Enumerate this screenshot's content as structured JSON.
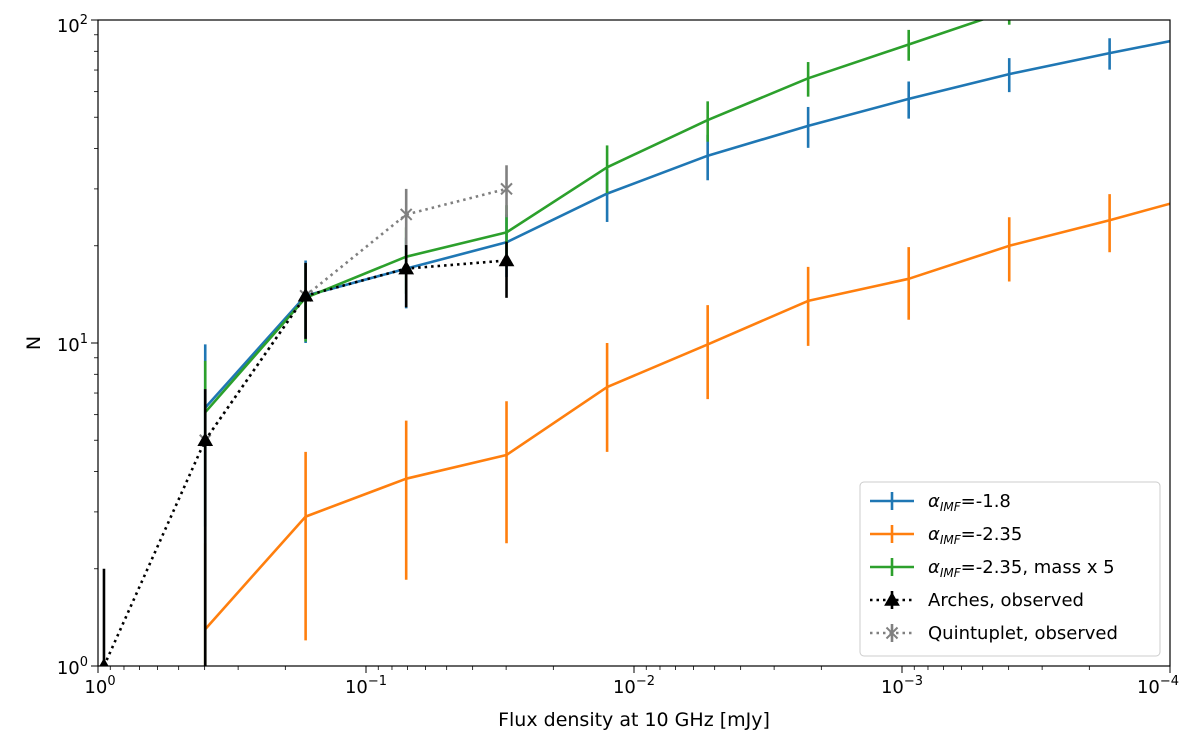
{
  "chart_data": {
    "type": "line",
    "xlabel": "Flux density at 10 GHz [mJy]",
    "ylabel": "N",
    "x_scale": "log",
    "y_scale": "log",
    "x_inverted": true,
    "xlim": [
      1,
      0.0001
    ],
    "ylim": [
      1,
      100
    ],
    "x_ticks": [
      {
        "value": 1,
        "base": "10",
        "exp": "0"
      },
      {
        "value": 0.1,
        "base": "10",
        "exp": "−1"
      },
      {
        "value": 0.01,
        "base": "10",
        "exp": "−2"
      },
      {
        "value": 0.001,
        "base": "10",
        "exp": "−3"
      },
      {
        "value": 0.0001,
        "base": "10",
        "exp": "−4"
      }
    ],
    "y_ticks": [
      {
        "value": 1,
        "base": "10",
        "exp": "0"
      },
      {
        "value": 10,
        "base": "10",
        "exp": "1"
      },
      {
        "value": 100,
        "base": "10",
        "exp": "2"
      }
    ],
    "legend_position": "lower-right",
    "series": [
      {
        "name": "α_IMF=-1.8",
        "label_main": "α",
        "label_sub": "IMF",
        "label_rest": "=-1.8",
        "color": "#1f77b4",
        "style": "solid",
        "marker": "none",
        "x": [
          0.398,
          0.168,
          0.0708,
          0.0299,
          0.0126,
          0.00531,
          0.00224,
          0.000944,
          0.000398,
          0.000168,
          0.0001
        ],
        "y": [
          6.3,
          14,
          17,
          20.5,
          29,
          38,
          47,
          57,
          68,
          79,
          86
        ],
        "yerr_low": [
          3.6,
          4,
          4.2,
          4.5,
          5.3,
          6.1,
          6.8,
          7.5,
          8.2,
          8.8,
          null
        ],
        "yerr_high": [
          3.6,
          4,
          4.2,
          4.5,
          5.3,
          6.1,
          6.8,
          7.5,
          8.2,
          8.8,
          null
        ]
      },
      {
        "name": "α_IMF=-2.35",
        "label_main": "α",
        "label_sub": "IMF",
        "label_rest": "=-2.35",
        "color": "#ff7f0e",
        "style": "solid",
        "marker": "none",
        "x": [
          0.398,
          0.168,
          0.0708,
          0.0299,
          0.0126,
          0.00531,
          0.00224,
          0.000944,
          0.000398,
          0.000168,
          0.0001
        ],
        "y": [
          1.3,
          2.9,
          3.8,
          4.5,
          7.3,
          9.9,
          13.5,
          15.8,
          20,
          24,
          27
        ],
        "yerr_low": [
          1.1,
          1.7,
          1.95,
          2.1,
          2.7,
          3.2,
          3.7,
          4,
          4.5,
          4.9,
          null
        ],
        "yerr_high": [
          1.1,
          1.7,
          1.95,
          2.1,
          2.7,
          3.2,
          3.7,
          4,
          4.5,
          4.9,
          null
        ]
      },
      {
        "name": "α_IMF=-2.35, mass x 5",
        "label_main": "α",
        "label_sub": "IMF",
        "label_rest": "=-2.35, mass x 5",
        "color": "#2ca02c",
        "style": "solid",
        "marker": "none",
        "x": [
          0.398,
          0.168,
          0.0708,
          0.0299,
          0.0126,
          0.00531,
          0.00224,
          0.000944,
          0.000398
        ],
        "y": [
          6.1,
          13.8,
          18.5,
          22,
          35,
          49,
          66,
          84,
          107
        ],
        "yerr_low": [
          5.1,
          3.7,
          4.3,
          4.7,
          5.9,
          7,
          8.1,
          9.2,
          10.3
        ],
        "yerr_high": [
          2.7,
          3.7,
          4.3,
          4.7,
          5.9,
          7,
          8.1,
          9.2,
          10.3
        ]
      },
      {
        "name": "Arches, observed",
        "label_main": "Arches, observed",
        "label_sub": "",
        "label_rest": "",
        "color": "#000000",
        "style": "dotted",
        "marker": "triangle",
        "x": [
          0.95,
          0.398,
          0.168,
          0.0708,
          0.0299
        ],
        "y": [
          1,
          5,
          14,
          17,
          18
        ],
        "yerr_low": [
          0,
          4,
          3.7,
          4.1,
          4.2
        ],
        "yerr_high": [
          1,
          2.2,
          3.7,
          3.1,
          2.6
        ]
      },
      {
        "name": "Quintuplet, observed",
        "label_main": "Quintuplet, observed",
        "label_sub": "",
        "label_rest": "",
        "color": "#808080",
        "style": "dotted",
        "marker": "x",
        "x": [
          0.398,
          0.168,
          0.0708,
          0.0299
        ],
        "y": [
          5,
          14,
          25,
          30
        ],
        "yerr_low": [
          4,
          3.7,
          5,
          5.5
        ],
        "yerr_high": [
          2.2,
          3.7,
          5,
          5.5
        ]
      }
    ]
  }
}
